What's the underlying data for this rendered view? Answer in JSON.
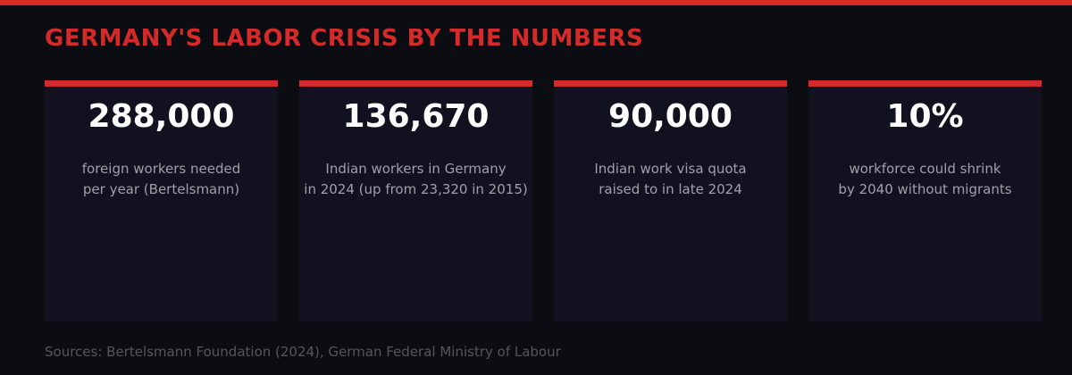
{
  "header": {
    "title": "GERMANY'S LABOR CRISIS BY THE NUMBERS"
  },
  "cards": [
    {
      "value": "288,000",
      "description": [
        "foreign workers needed",
        "per year (Bertelsmann)"
      ]
    },
    {
      "value": "136,670",
      "description": [
        "Indian workers in Germany",
        "in 2024 (up from 23,320 in 2015)"
      ]
    },
    {
      "value": "90,000",
      "description": [
        "Indian work visa quota",
        "raised to in late 2024"
      ]
    },
    {
      "value": "10%",
      "description": [
        "workforce could shrink",
        "by 2040 without migrants"
      ]
    }
  ],
  "footer": {
    "source": "Sources: Bertelsmann Foundation (2024), German Federal Ministry of Labour"
  }
}
